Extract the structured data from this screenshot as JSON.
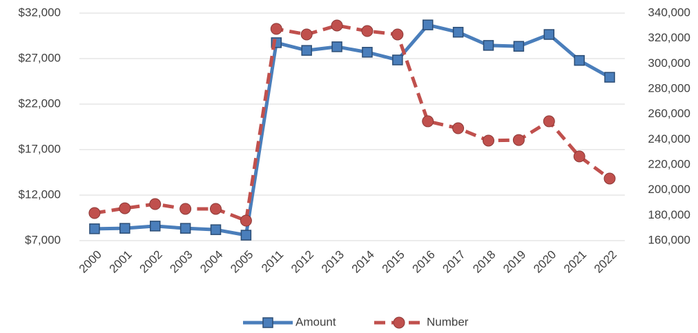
{
  "chart_data": {
    "type": "line",
    "categories": [
      "2000",
      "2001",
      "2002",
      "2003",
      "2004",
      "2005",
      "2011",
      "2012",
      "2013",
      "2014",
      "2015",
      "2016",
      "2017",
      "2018",
      "2019",
      "2020",
      "2021",
      "2022"
    ],
    "series": [
      {
        "name": "Amount",
        "color": "#4a7ebb",
        "marker": "square",
        "axis": "y",
        "values": [
          8300,
          8350,
          8600,
          8350,
          8200,
          7600,
          28750,
          27900,
          28300,
          27700,
          26850,
          30700,
          29900,
          28450,
          28350,
          29650,
          26800,
          24950
        ]
      },
      {
        "name": "Number",
        "color": "#c0504d",
        "marker": "circle",
        "dashed": true,
        "axis": "y2",
        "values": [
          181800,
          185600,
          188900,
          185100,
          185100,
          175800,
          327500,
          323100,
          330200,
          325800,
          323100,
          254400,
          248900,
          239100,
          239600,
          254400,
          226600,
          209100
        ]
      }
    ],
    "ylim": [
      7000,
      32000
    ],
    "yticks": [
      {
        "value": 7000,
        "label": "$7,000"
      },
      {
        "value": 12000,
        "label": "$12,000"
      },
      {
        "value": 17000,
        "label": "$17,000"
      },
      {
        "value": 22000,
        "label": "$22,000"
      },
      {
        "value": 27000,
        "label": "$27,000"
      },
      {
        "value": 32000,
        "label": "$32,000"
      }
    ],
    "y2lim": [
      160000,
      340000
    ],
    "y2ticks": [
      {
        "value": 160000,
        "label": "160,000"
      },
      {
        "value": 180000,
        "label": "180,000"
      },
      {
        "value": 200000,
        "label": "200,000"
      },
      {
        "value": 220000,
        "label": "220,000"
      },
      {
        "value": 240000,
        "label": "240,000"
      },
      {
        "value": 260000,
        "label": "260,000"
      },
      {
        "value": 280000,
        "label": "280,000"
      },
      {
        "value": 300000,
        "label": "300,000"
      },
      {
        "value": 320000,
        "label": "320,000"
      },
      {
        "value": 340000,
        "label": "340,000"
      }
    ],
    "grid": true,
    "legend": "bottom"
  }
}
